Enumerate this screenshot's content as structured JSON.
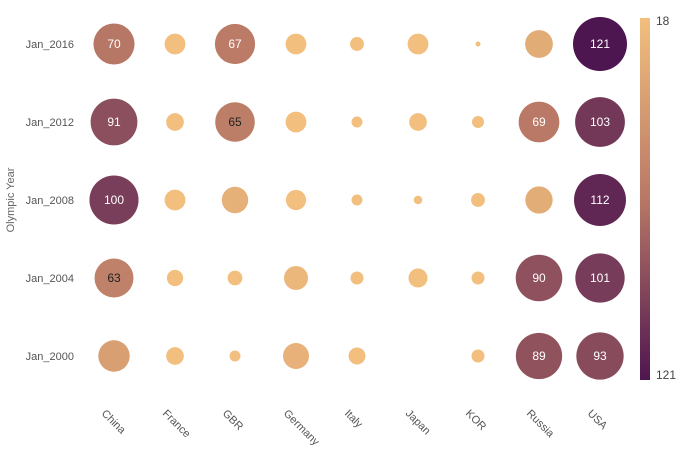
{
  "chart_data": {
    "type": "bubble",
    "title": "",
    "xlabel": "",
    "ylabel": "Olympic Year",
    "categories": [
      "China",
      "France",
      "GBR",
      "Germany",
      "Italy",
      "Japan",
      "KOR",
      "Russia",
      "USA"
    ],
    "rows": [
      "Jan_2016",
      "Jan_2012",
      "Jan_2008",
      "Jan_2004",
      "Jan_2000"
    ],
    "values": [
      [
        70,
        18,
        67,
        18,
        8,
        18,
        1,
        32,
        121
      ],
      [
        91,
        13,
        65,
        18,
        5,
        13,
        6,
        69,
        103
      ],
      [
        100,
        18,
        29,
        17,
        5,
        3,
        8,
        31,
        112
      ],
      [
        63,
        11,
        9,
        24,
        7,
        15,
        7,
        90,
        101
      ],
      [
        41,
        13,
        5,
        28,
        12,
        null,
        7,
        89,
        93
      ]
    ],
    "labeled_threshold": 60,
    "color_scale": {
      "min": 18,
      "max": 121,
      "low_color": "#f2bf7e",
      "high_color": "#4e1650",
      "legend_top_label": "18",
      "legend_bottom_label": "121"
    },
    "legend_placement": "right",
    "grid": false
  }
}
